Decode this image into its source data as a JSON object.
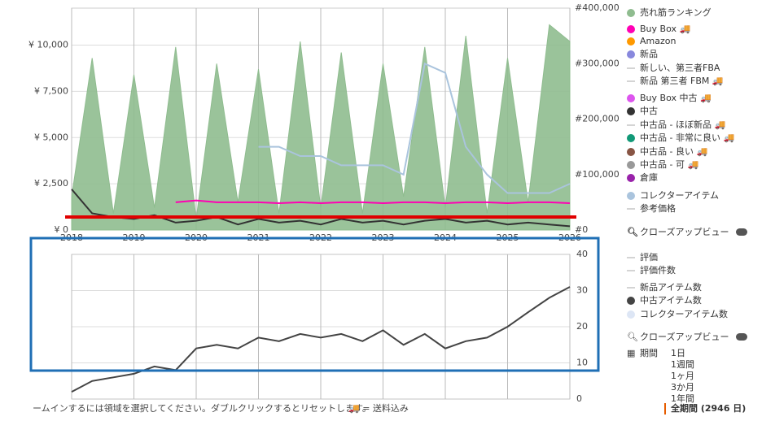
{
  "chart_data": [
    {
      "type": "line",
      "xlim": [
        2018,
        2026
      ],
      "xticks": [
        2018,
        2019,
        2020,
        2021,
        2022,
        2023,
        2024,
        2025,
        2026
      ],
      "ylim": [
        0,
        12000
      ],
      "yticks": [
        {
          "value": 0,
          "label": "¥ 0"
        },
        {
          "value": 2500,
          "label": "¥ 2,500"
        },
        {
          "value": 5000,
          "label": "¥ 5,000"
        },
        {
          "value": 7500,
          "label": "¥ 7,500"
        },
        {
          "value": 10000,
          "label": "¥ 10,000"
        }
      ],
      "y2lim": [
        0,
        400000
      ],
      "y2ticks": [
        {
          "value": 0,
          "label": "#0"
        },
        {
          "value": 100000,
          "label": "#100,000"
        },
        {
          "value": 200000,
          "label": "#200,000"
        },
        {
          "value": 300000,
          "label": "#300,000"
        },
        {
          "value": 400000,
          "label": "#400,000"
        }
      ],
      "grid": true,
      "x": [
        2018,
        2018.33,
        2018.67,
        2019,
        2019.33,
        2019.67,
        2020,
        2020.33,
        2020.67,
        2021,
        2021.33,
        2021.67,
        2022,
        2022.33,
        2022.67,
        2023,
        2023.33,
        2023.67,
        2024,
        2024.33,
        2024.67,
        2025,
        2025.33,
        2025.67,
        2026
      ],
      "series": [
        {
          "name": "売れ筋ランキング",
          "color": "#8fbc8f",
          "marker": "dot",
          "axis": "y2",
          "area": true,
          "values": [
            60000,
            310000,
            30000,
            280000,
            40000,
            330000,
            20000,
            300000,
            50000,
            290000,
            30000,
            340000,
            40000,
            320000,
            30000,
            300000,
            60000,
            330000,
            40000,
            350000,
            30000,
            310000,
            50000,
            370000,
            340000
          ]
        },
        {
          "name": "Buy Box 🚚",
          "color": "#ff00b4",
          "marker": "dot",
          "values": [
            null,
            null,
            null,
            null,
            null,
            1500,
            1600,
            1500,
            1500,
            1500,
            1450,
            1500,
            1450,
            1500,
            1500,
            1450,
            1500,
            1500,
            1450,
            1500,
            1500,
            1450,
            1500,
            1500,
            1450
          ]
        },
        {
          "name": "Amazon",
          "color": "#ff9900",
          "marker": "dot"
        },
        {
          "name": "新品",
          "color": "#8888dd",
          "marker": "dot"
        },
        {
          "name": "新しい、第三者FBA",
          "color": "#aaaaaa",
          "marker": "line"
        },
        {
          "name": "新品 第三者 FBM 🚚",
          "color": "#aaaaaa",
          "marker": "line"
        },
        {
          "name": "Buy Box 中古 🚚",
          "color": "#dd55ee",
          "marker": "dot"
        },
        {
          "name": "中古",
          "color": "#333333",
          "marker": "dot",
          "values": [
            2200,
            900,
            700,
            600,
            800,
            400,
            500,
            700,
            300,
            600,
            400,
            500,
            300,
            600,
            400,
            500,
            300,
            500,
            600,
            400,
            500,
            300,
            400,
            300,
            200
          ]
        },
        {
          "name": "中古品 - ほぼ新品 🚚",
          "color": "#aaaaaa",
          "marker": "line"
        },
        {
          "name": "中古品 - 非常に良い 🚚",
          "color": "#119977",
          "marker": "dot"
        },
        {
          "name": "中古品 - 良い 🚚",
          "color": "#885544",
          "marker": "dot"
        },
        {
          "name": "中古品 - 可 🚚",
          "color": "#999999",
          "marker": "dot"
        },
        {
          "name": "倉庫",
          "color": "#9922aa",
          "marker": "dot"
        },
        {
          "name": "コレクターアイテム",
          "color": "#aac4dd",
          "marker": "dot",
          "values": [
            null,
            null,
            null,
            null,
            null,
            null,
            null,
            null,
            null,
            4500,
            4500,
            4000,
            4000,
            3500,
            3500,
            3500,
            3000,
            9000,
            8500,
            4500,
            3000,
            2000,
            2000,
            2000,
            2500
          ]
        },
        {
          "name": "参考価格",
          "color": "#aaaaaa",
          "marker": "line"
        }
      ]
    },
    {
      "type": "line",
      "ylim": [
        0,
        40
      ],
      "yticks": [
        0,
        10,
        20,
        30,
        40
      ],
      "grid": true,
      "x": [
        2018,
        2018.33,
        2018.67,
        2019,
        2019.33,
        2019.67,
        2020,
        2020.33,
        2020.67,
        2021,
        2021.33,
        2021.67,
        2022,
        2022.33,
        2022.67,
        2023,
        2023.33,
        2023.67,
        2024,
        2024.33,
        2024.67,
        2025,
        2025.33,
        2025.67,
        2026
      ],
      "series": [
        {
          "name": "評価",
          "color": "#aaaaaa",
          "marker": "line"
        },
        {
          "name": "評価件数",
          "color": "#aaaaaa",
          "marker": "line"
        },
        {
          "name": "新品アイテム数",
          "color": "#aaaaaa",
          "marker": "line"
        },
        {
          "name": "中古アイテム数",
          "color": "#444444",
          "marker": "dot",
          "values": [
            2,
            5,
            6,
            7,
            9,
            8,
            14,
            15,
            14,
            17,
            16,
            18,
            17,
            18,
            16,
            19,
            15,
            18,
            14,
            16,
            17,
            20,
            24,
            28,
            31
          ]
        },
        {
          "name": "コレクターアイテム数",
          "color": "#dde6f5",
          "marker": "dot"
        }
      ]
    }
  ],
  "closeup": "クローズアップビュー",
  "period_label": "期間",
  "periods": [
    "1日",
    "1週間",
    "1ヶ月",
    "3か月",
    "1年間"
  ],
  "period_selected": "全期間 (2946 日)",
  "hint": "ームインするには領域を選択してください。ダブルクリックするとリセットします。",
  "shipping_note": "🚚 = 送料込み"
}
